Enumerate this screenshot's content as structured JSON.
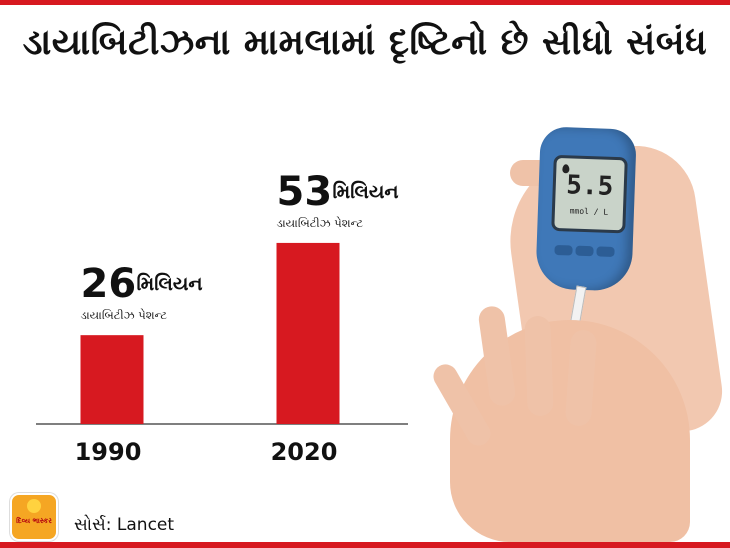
{
  "headline": "ડાયાબિટીઝના મામલામાં દૃષ્ટિનો છે સીધો સંબંધ",
  "colors": {
    "accent": "#d71920",
    "bar": "#d71920",
    "text": "#111111"
  },
  "chart_data": {
    "type": "bar",
    "categories": [
      "1990",
      "2020"
    ],
    "values": [
      26,
      53
    ],
    "value_unit": "મિલિયન",
    "value_sublabel": "ડાયાબિટીઝ પેશન્ટ",
    "title": "",
    "xlabel": "",
    "ylabel": "",
    "ylim": [
      0,
      60
    ],
    "grid": false,
    "legend": "none"
  },
  "meter": {
    "reading": "5.5",
    "unit": "mmol / L"
  },
  "logo": {
    "text": "દિવ્ય ભાસ્કર"
  },
  "source": "સોર્સ: Lancet"
}
